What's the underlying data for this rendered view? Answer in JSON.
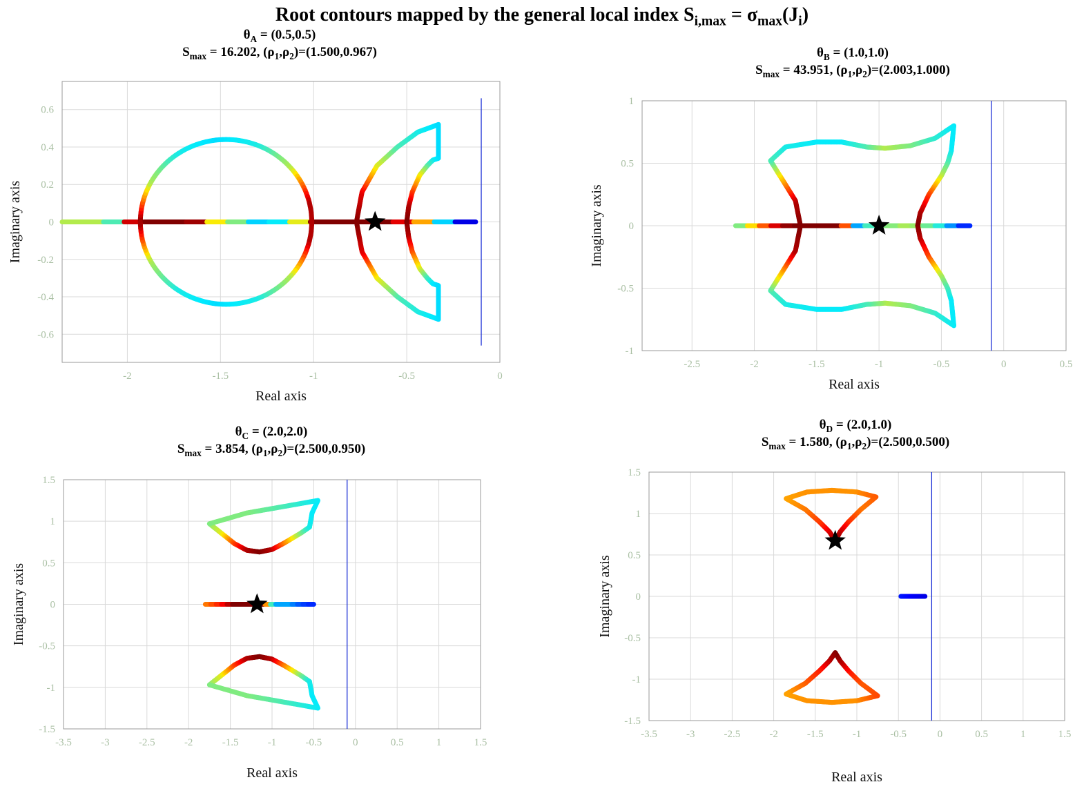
{
  "figure_title": {
    "main": "Root contours mapped by the general local index S",
    "sub1": "i,max",
    "mid": " = σ",
    "sub2": "max",
    "open": "(J",
    "sub3": "i",
    "close": ")"
  },
  "colors": {
    "grid": "#d9d9d9",
    "frame": "#9a9a9a",
    "tick_text": "#a9bfa3",
    "stability_line": "#1b2fd6",
    "marker": "#000000",
    "colormap": "jet"
  },
  "chart_data": [
    {
      "id": "A",
      "type": "scatter",
      "theta_label": "θ",
      "theta_sub": "A",
      "theta_value": " = (0.5,0.5)",
      "s_label": "S",
      "s_sub": "max",
      "s_value": " = 16.202,  (ρ",
      "rho1_sub": "1",
      "comma": ",ρ",
      "rho2_sub": "2",
      "rho_value": ")=(1.500,0.967)",
      "xlabel": "Real axis",
      "ylabel": "Imaginary axis",
      "xlim": [
        -2.35,
        0
      ],
      "ylim": [
        -0.75,
        0.75
      ],
      "xticks": [
        -2,
        -1.5,
        -1,
        -0.5,
        0
      ],
      "xtick_labels": [
        "-2",
        "-1.5",
        "-1",
        "-0.5",
        "0"
      ],
      "yticks": [
        -0.6,
        -0.4,
        -0.2,
        0,
        0.2,
        0.4,
        0.6
      ],
      "ytick_labels": [
        "-0.6",
        "-0.4",
        "-0.2",
        "0",
        "0.2",
        "0.4",
        "0.6"
      ],
      "stability_line_x": -0.1,
      "stability_line_y": [
        -0.66,
        0.66
      ],
      "star": [
        -0.67,
        0
      ]
    },
    {
      "id": "B",
      "type": "scatter",
      "theta_label": "θ",
      "theta_sub": "B",
      "theta_value": " = (1.0,1.0)",
      "s_label": "S",
      "s_sub": "max",
      "s_value": " = 43.951,  (ρ",
      "rho1_sub": "1",
      "comma": ",ρ",
      "rho2_sub": "2",
      "rho_value": ")=(2.003,1.000)",
      "xlabel": "Real axis",
      "ylabel": "Imaginary axis",
      "xlim": [
        -2.9,
        0.5
      ],
      "ylim": [
        -1,
        1
      ],
      "xticks": [
        -2.5,
        -2,
        -1.5,
        -1,
        -0.5,
        0,
        0.5
      ],
      "xtick_labels": [
        "-2.5",
        "-2",
        "-1.5",
        "-1",
        "-0.5",
        "0",
        "0.5"
      ],
      "yticks": [
        -1,
        -0.5,
        0,
        0.5,
        1
      ],
      "ytick_labels": [
        "-1",
        "-0.5",
        "0",
        "0.5",
        "1"
      ],
      "stability_line_x": -0.1,
      "stability_line_y": [
        -1,
        1
      ],
      "star": [
        -1.0,
        0
      ]
    },
    {
      "id": "C",
      "type": "scatter",
      "theta_label": "θ",
      "theta_sub": "C",
      "theta_value": " = (2.0,2.0)",
      "s_label": "S",
      "s_sub": "max",
      "s_value": " = 3.854,  (ρ",
      "rho1_sub": "1",
      "comma": ",ρ",
      "rho2_sub": "2",
      "rho_value": ")=(2.500,0.950)",
      "xlabel": "Real axis",
      "ylabel": "Imaginary axis",
      "xlim": [
        -3.5,
        1.5
      ],
      "ylim": [
        -1.5,
        1.5
      ],
      "xticks": [
        -3.5,
        -3,
        -2.5,
        -2,
        -1.5,
        -1,
        -0.5,
        0,
        0.5,
        1,
        1.5
      ],
      "xtick_labels": [
        "-3.5",
        "-3",
        "-2.5",
        "-2",
        "-1.5",
        "-1",
        "-0.5",
        "0",
        "0.5",
        "1",
        "1.5"
      ],
      "yticks": [
        -1.5,
        -1,
        -0.5,
        0,
        0.5,
        1,
        1.5
      ],
      "ytick_labels": [
        "-1.5",
        "-1",
        "-0.5",
        "0",
        "0.5",
        "1",
        "1.5"
      ],
      "stability_line_x": -0.1,
      "stability_line_y": [
        -1.5,
        1.5
      ],
      "star": [
        -1.18,
        0
      ]
    },
    {
      "id": "D",
      "type": "scatter",
      "theta_label": "θ",
      "theta_sub": "D",
      "theta_value": " = (2.0,1.0)",
      "s_label": "S",
      "s_sub": "max",
      "s_value": " = 1.580,  (ρ",
      "rho1_sub": "1",
      "comma": ",ρ",
      "rho2_sub": "2",
      "rho_value": ")=(2.500,0.500)",
      "xlabel": "Real axis",
      "ylabel": "Imaginary axis",
      "xlim": [
        -3.5,
        1.5
      ],
      "ylim": [
        -1.5,
        1.5
      ],
      "xticks": [
        -3.5,
        -3,
        -2.5,
        -2,
        -1.5,
        -1,
        -0.5,
        0,
        0.5,
        1,
        1.5
      ],
      "xtick_labels": [
        "-3.5",
        "-3",
        "-2.5",
        "-2",
        "-1.5",
        "-1",
        "-0.5",
        "0",
        "0.5",
        "1",
        "1.5"
      ],
      "yticks": [
        -1.5,
        -1,
        -0.5,
        0,
        0.5,
        1,
        1.5
      ],
      "ytick_labels": [
        "-1.5",
        "-1",
        "-0.5",
        "0",
        "0.5",
        "1",
        "1.5"
      ],
      "stability_line_x": -0.1,
      "stability_line_y": [
        -1.5,
        1.5
      ],
      "star": [
        -1.26,
        0.67
      ]
    }
  ],
  "contours": {
    "A": [
      {
        "kind": "line",
        "pts": [
          [
            -2.35,
            0
          ],
          [
            -0.13,
            0
          ]
        ],
        "cols": [
          0.55,
          0.55,
          0.45,
          0.92,
          1,
          1,
          0.97,
          0.62,
          0.5,
          0.35,
          0.38,
          0.6,
          1,
          1,
          1,
          1,
          0.9,
          0.7,
          0.35,
          0.1,
          0.0
        ]
      },
      {
        "kind": "ellipse",
        "cx": -1.47,
        "cy": 0,
        "rx": 0.46,
        "ry": 0.44,
        "cols": [
          1,
          0.55,
          0.4,
          0.36,
          0.4,
          0.55,
          0.95,
          0.95,
          0.55,
          0.4,
          0.36,
          0.4,
          0.55,
          1
        ]
      },
      {
        "kind": "poly",
        "pts": [
          [
            -0.77,
            0
          ],
          [
            -0.74,
            0.16
          ],
          [
            -0.66,
            0.3
          ],
          [
            -0.55,
            0.4
          ],
          [
            -0.44,
            0.48
          ],
          [
            -0.33,
            0.52
          ],
          [
            -0.33,
            0.34
          ],
          [
            -0.36,
            0.33
          ],
          [
            -0.39,
            0.3
          ],
          [
            -0.43,
            0.25
          ],
          [
            -0.47,
            0.16
          ],
          [
            -0.49,
            0.08
          ],
          [
            -0.5,
            0
          ],
          [
            -0.49,
            -0.08
          ],
          [
            -0.47,
            -0.16
          ],
          [
            -0.43,
            -0.25
          ],
          [
            -0.39,
            -0.3
          ],
          [
            -0.36,
            -0.33
          ],
          [
            -0.33,
            -0.34
          ],
          [
            -0.33,
            -0.52
          ],
          [
            -0.44,
            -0.48
          ],
          [
            -0.55,
            -0.4
          ],
          [
            -0.66,
            -0.3
          ],
          [
            -0.74,
            -0.16
          ],
          [
            -0.77,
            0
          ]
        ],
        "cols": [
          1,
          0.9,
          0.6,
          0.45,
          0.4,
          0.36,
          0.36,
          0.38,
          0.45,
          0.6,
          0.8,
          0.95,
          1,
          0.95,
          0.8,
          0.6,
          0.45,
          0.38,
          0.36,
          0.36,
          0.4,
          0.45,
          0.6,
          0.9,
          1
        ]
      }
    ],
    "B": [
      {
        "kind": "line",
        "pts": [
          [
            -2.15,
            0
          ],
          [
            -0.27,
            0
          ]
        ],
        "cols": [
          0.5,
          0.7,
          0.9,
          1,
          1,
          1,
          1,
          0.3,
          0.5,
          0.5,
          0.55,
          0.5,
          0.4,
          0.2,
          0.1
        ]
      },
      {
        "kind": "poly",
        "pts": [
          [
            -1.63,
            0
          ],
          [
            -1.67,
            0.2
          ],
          [
            -1.77,
            0.36
          ],
          [
            -1.87,
            0.52
          ],
          [
            -1.75,
            0.63
          ],
          [
            -1.5,
            0.67
          ],
          [
            -1.3,
            0.67
          ],
          [
            -1.1,
            0.63
          ],
          [
            -0.95,
            0.62
          ],
          [
            -0.75,
            0.64
          ],
          [
            -0.55,
            0.7
          ],
          [
            -0.4,
            0.8
          ],
          [
            -0.42,
            0.6
          ],
          [
            -0.45,
            0.5
          ],
          [
            -0.5,
            0.4
          ],
          [
            -0.6,
            0.25
          ],
          [
            -0.67,
            0.1
          ],
          [
            -0.69,
            0
          ],
          [
            -0.67,
            -0.1
          ],
          [
            -0.6,
            -0.25
          ],
          [
            -0.5,
            -0.4
          ],
          [
            -0.45,
            -0.5
          ],
          [
            -0.42,
            -0.6
          ],
          [
            -0.4,
            -0.8
          ],
          [
            -0.55,
            -0.7
          ],
          [
            -0.75,
            -0.64
          ],
          [
            -0.95,
            -0.62
          ],
          [
            -1.1,
            -0.63
          ],
          [
            -1.3,
            -0.67
          ],
          [
            -1.5,
            -0.67
          ],
          [
            -1.75,
            -0.63
          ],
          [
            -1.87,
            -0.52
          ],
          [
            -1.77,
            -0.36
          ],
          [
            -1.67,
            -0.2
          ],
          [
            -1.63,
            0
          ]
        ],
        "cols": [
          1,
          0.95,
          0.7,
          0.45,
          0.4,
          0.38,
          0.38,
          0.45,
          0.55,
          0.5,
          0.42,
          0.38,
          0.38,
          0.45,
          0.55,
          0.8,
          0.95,
          1,
          0.95,
          0.8,
          0.55,
          0.45,
          0.38,
          0.38,
          0.42,
          0.5,
          0.55,
          0.45,
          0.38,
          0.38,
          0.4,
          0.45,
          0.7,
          0.95,
          1
        ]
      }
    ],
    "C": [
      {
        "kind": "line",
        "pts": [
          [
            -1.8,
            0
          ],
          [
            -0.5,
            0
          ]
        ],
        "cols": [
          0.75,
          0.85,
          1,
          1,
          1,
          0.3,
          0.3,
          0.2,
          0.15
        ]
      },
      {
        "kind": "poly",
        "pts": [
          [
            -1.75,
            0.97
          ],
          [
            -1.6,
            0.85
          ],
          [
            -1.45,
            0.73
          ],
          [
            -1.3,
            0.65
          ],
          [
            -1.15,
            0.63
          ],
          [
            -1.0,
            0.66
          ],
          [
            -0.85,
            0.74
          ],
          [
            -0.65,
            0.86
          ],
          [
            -0.55,
            0.93
          ],
          [
            -0.52,
            1.1
          ],
          [
            -0.45,
            1.25
          ],
          [
            -0.9,
            1.17
          ],
          [
            -1.3,
            1.1
          ],
          [
            -1.75,
            0.97
          ]
        ],
        "cols": [
          0.5,
          0.6,
          0.8,
          0.95,
          1,
          0.95,
          0.75,
          0.5,
          0.4,
          0.38,
          0.38,
          0.45,
          0.5,
          0.5
        ]
      },
      {
        "kind": "poly",
        "pts": [
          [
            -1.75,
            -0.97
          ],
          [
            -1.6,
            -0.85
          ],
          [
            -1.45,
            -0.73
          ],
          [
            -1.3,
            -0.65
          ],
          [
            -1.15,
            -0.63
          ],
          [
            -1.0,
            -0.66
          ],
          [
            -0.85,
            -0.74
          ],
          [
            -0.65,
            -0.86
          ],
          [
            -0.55,
            -0.93
          ],
          [
            -0.52,
            -1.1
          ],
          [
            -0.45,
            -1.25
          ],
          [
            -0.9,
            -1.17
          ],
          [
            -1.3,
            -1.1
          ],
          [
            -1.75,
            -0.97
          ]
        ],
        "cols": [
          0.5,
          0.6,
          0.8,
          0.95,
          1,
          0.95,
          0.75,
          0.5,
          0.4,
          0.38,
          0.38,
          0.45,
          0.5,
          0.5
        ]
      }
    ],
    "D": [
      {
        "kind": "line",
        "pts": [
          [
            -0.47,
            0
          ],
          [
            -0.18,
            0
          ]
        ],
        "cols": [
          0.15,
          0.12,
          0.1
        ]
      },
      {
        "kind": "poly",
        "pts": [
          [
            -1.85,
            1.18
          ],
          [
            -1.6,
            1.26
          ],
          [
            -1.3,
            1.28
          ],
          [
            -1.0,
            1.26
          ],
          [
            -0.77,
            1.2
          ],
          [
            -0.95,
            1.05
          ],
          [
            -1.1,
            0.9
          ],
          [
            -1.2,
            0.78
          ],
          [
            -1.26,
            0.67
          ],
          [
            -1.33,
            0.78
          ],
          [
            -1.45,
            0.9
          ],
          [
            -1.62,
            1.05
          ],
          [
            -1.85,
            1.18
          ]
        ],
        "cols": [
          0.7,
          0.72,
          0.72,
          0.72,
          0.78,
          0.75,
          0.82,
          0.92,
          1,
          0.92,
          0.82,
          0.75,
          0.7
        ]
      },
      {
        "kind": "poly",
        "pts": [
          [
            -1.85,
            -1.18
          ],
          [
            -1.6,
            -1.26
          ],
          [
            -1.3,
            -1.28
          ],
          [
            -1.0,
            -1.26
          ],
          [
            -0.75,
            -1.2
          ],
          [
            -0.95,
            -1.05
          ],
          [
            -1.1,
            -0.9
          ],
          [
            -1.2,
            -0.78
          ],
          [
            -1.26,
            -0.68
          ],
          [
            -1.33,
            -0.78
          ],
          [
            -1.45,
            -0.9
          ],
          [
            -1.62,
            -1.05
          ],
          [
            -1.85,
            -1.18
          ]
        ],
        "cols": [
          0.7,
          0.72,
          0.72,
          0.72,
          0.8,
          0.78,
          0.85,
          0.95,
          1,
          0.95,
          0.85,
          0.78,
          0.7
        ]
      }
    ]
  }
}
